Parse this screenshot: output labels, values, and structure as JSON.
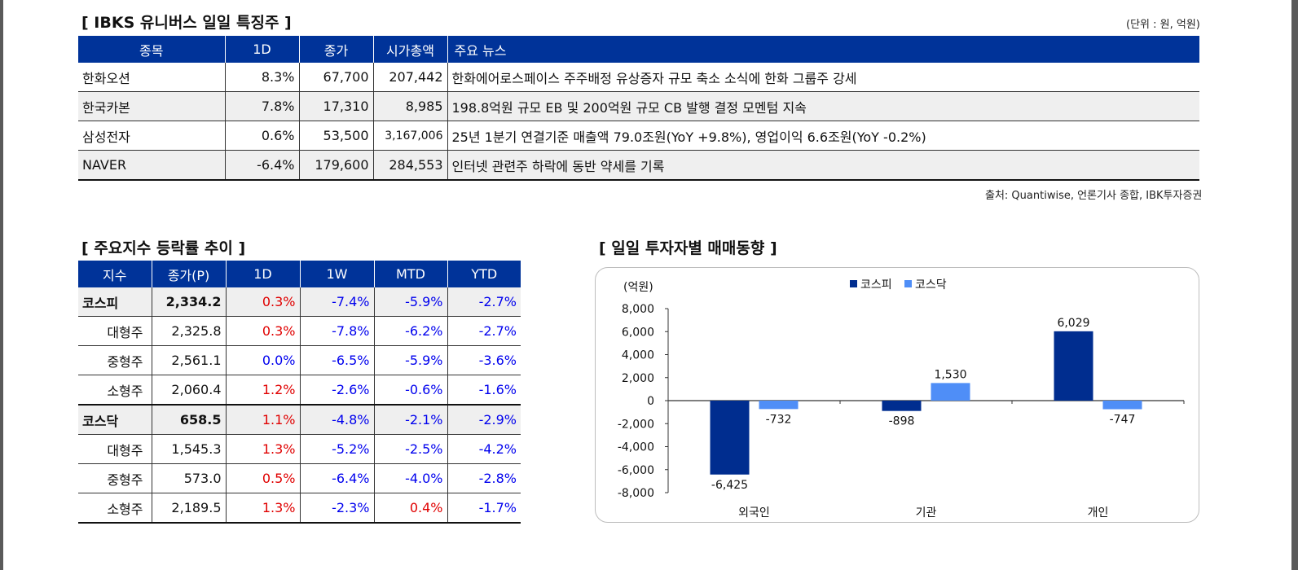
{
  "colors": {
    "header_bg": "#003399",
    "kospi": "#002D8F",
    "kosdaq": "#4F8EF7",
    "positive": "#E00000",
    "negative": "#0000EE"
  },
  "stock_section": {
    "title": "[ IBKS 유니버스 일일 특징주 ]",
    "unit": "(단위 : 원, 억원)",
    "headers": [
      "종목",
      "1D",
      "종가",
      "시가총액",
      "주요 뉴스"
    ],
    "rows": [
      {
        "name": "한화오션",
        "d1": "8.3%",
        "close": "67,700",
        "mcap": "207,442",
        "news": "한화에어로스페이스 주주배정 유상증자 규모 축소 소식에 한화 그룹주 강세"
      },
      {
        "name": "한국카본",
        "d1": "7.8%",
        "close": "17,310",
        "mcap": "8,985",
        "news": "198.8억원 규모 EB 및 200억원 규모 CB 발행 결정 모멘텀 지속"
      },
      {
        "name": "삼성전자",
        "d1": "0.6%",
        "close": "53,500",
        "mcap": "3,167,006",
        "news": "25년 1분기 연결기준 매출액 79.0조원(YoY +9.8%), 영업이익 6.6조원(YoY -0.2%)"
      },
      {
        "name": "NAVER",
        "d1": "-6.4%",
        "close": "179,600",
        "mcap": "284,553",
        "news": "인터넷 관련주 하락에 동반 약세를 기록"
      }
    ],
    "source": "출처: Quantiwise, 언론기사 종합, IBK투자증권"
  },
  "index_section": {
    "title": "[ 주요지수 등락률 추이 ]",
    "headers": [
      "지수",
      "종가(P)",
      "1D",
      "1W",
      "MTD",
      "YTD"
    ],
    "rows": [
      {
        "name": "코스피",
        "close": "2,334.2",
        "d1": "0.3%",
        "w1": "-7.4%",
        "mtd": "-5.9%",
        "ytd": "-2.7%"
      },
      {
        "name": "대형주",
        "close": "2,325.8",
        "d1": "0.3%",
        "w1": "-7.8%",
        "mtd": "-6.2%",
        "ytd": "-2.7%"
      },
      {
        "name": "중형주",
        "close": "2,561.1",
        "d1": "0.0%",
        "w1": "-6.5%",
        "mtd": "-5.9%",
        "ytd": "-3.6%"
      },
      {
        "name": "소형주",
        "close": "2,060.4",
        "d1": "1.2%",
        "w1": "-2.6%",
        "mtd": "-0.6%",
        "ytd": "-1.6%"
      },
      {
        "name": "코스닥",
        "close": "658.5",
        "d1": "1.1%",
        "w1": "-4.8%",
        "mtd": "-2.1%",
        "ytd": "-2.9%"
      },
      {
        "name": "대형주",
        "close": "1,545.3",
        "d1": "1.3%",
        "w1": "-5.2%",
        "mtd": "-2.5%",
        "ytd": "-4.2%"
      },
      {
        "name": "중형주",
        "close": "573.0",
        "d1": "0.5%",
        "w1": "-6.4%",
        "mtd": "-4.0%",
        "ytd": "-2.8%"
      },
      {
        "name": "소형주",
        "close": "2,189.5",
        "d1": "1.3%",
        "w1": "-2.3%",
        "mtd": "0.4%",
        "ytd": "-1.7%"
      }
    ]
  },
  "trading_section": {
    "title": "[ 일일 투자자별 매매동향 ]"
  },
  "chart_data": {
    "type": "bar",
    "ylabel": "(억원)",
    "categories": [
      "외국인",
      "기관",
      "개인"
    ],
    "series": [
      {
        "name": "코스피",
        "values": [
          -6425,
          -898,
          6029
        ]
      },
      {
        "name": "코스닥",
        "values": [
          -732,
          1530,
          -747
        ]
      }
    ],
    "data_labels": [
      [
        "-6,425",
        "-898",
        "6,029"
      ],
      [
        "-732",
        "1,530",
        "-747"
      ]
    ],
    "ylim": [
      -8000,
      8000
    ],
    "yticks": [
      8000,
      6000,
      4000,
      2000,
      0,
      -2000,
      -4000,
      -6000,
      -8000
    ],
    "ytick_labels": [
      "8,000",
      "6,000",
      "4,000",
      "2,000",
      "0",
      "-2,000",
      "-4,000",
      "-6,000",
      "-8,000"
    ],
    "legend_position": "top-center",
    "grid": false
  }
}
